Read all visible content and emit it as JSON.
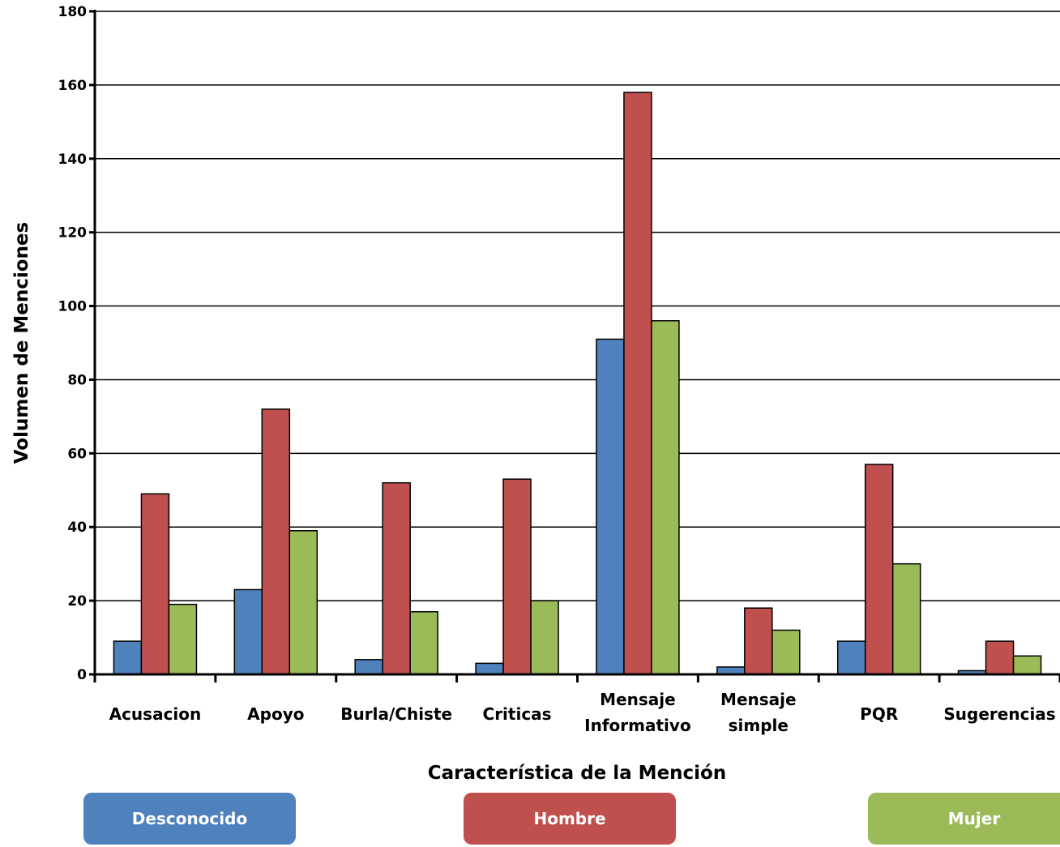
{
  "chart_data": {
    "type": "bar",
    "categories": [
      "Acusacion",
      "Apoyo",
      "Burla/Chiste",
      "Criticas",
      "Mensaje Informativo",
      "Mensaje simple",
      "PQR",
      "Sugerencias"
    ],
    "category_lines": [
      [
        "Acusacion"
      ],
      [
        "Apoyo"
      ],
      [
        "Burla/Chiste"
      ],
      [
        "Criticas"
      ],
      [
        "Mensaje",
        "Informativo"
      ],
      [
        "Mensaje",
        "simple"
      ],
      [
        "PQR"
      ],
      [
        "Sugerencias"
      ]
    ],
    "series": [
      {
        "name": "Desconocido",
        "color": "#4f81bd",
        "values": [
          9,
          23,
          4,
          3,
          91,
          2,
          9,
          1
        ]
      },
      {
        "name": "Hombre",
        "color": "#c0504d",
        "values": [
          49,
          72,
          52,
          53,
          158,
          18,
          57,
          9
        ]
      },
      {
        "name": "Mujer",
        "color": "#9bbb59",
        "values": [
          19,
          39,
          17,
          20,
          96,
          12,
          30,
          5
        ]
      }
    ],
    "xlabel": "Característica de la Mención",
    "ylabel": "Volumen de Menciones",
    "ylim": [
      0,
      180
    ],
    "yticks": [
      0,
      20,
      40,
      60,
      80,
      100,
      120,
      140,
      160,
      180
    ],
    "grid": true,
    "legend_placement": "bottom"
  }
}
